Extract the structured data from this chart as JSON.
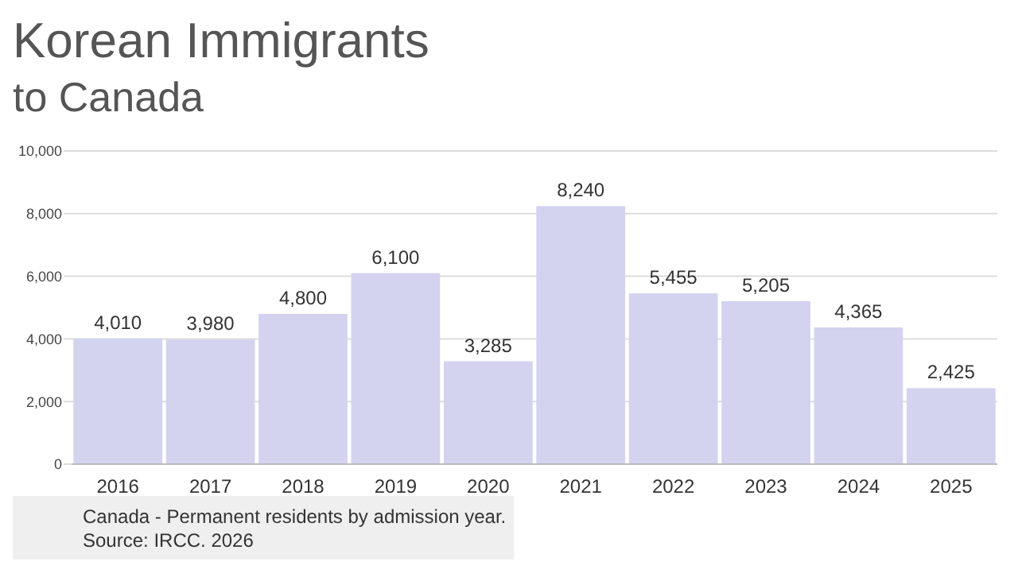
{
  "chart_data": {
    "type": "bar",
    "title": "Korean Immigrants",
    "subtitle": "to Canada",
    "categories": [
      "2016",
      "2017",
      "2018",
      "2019",
      "2020",
      "2021",
      "2022",
      "2023",
      "2024",
      "2025"
    ],
    "values": [
      4010,
      3980,
      4800,
      6100,
      3285,
      8240,
      5455,
      5205,
      4365,
      2425
    ],
    "value_labels": [
      "4,010",
      "3,980",
      "4,800",
      "6,100",
      "3,285",
      "8,240",
      "5,455",
      "5,205",
      "4,365",
      "2,425"
    ],
    "color": "#d3d3f0",
    "ylim": [
      0,
      10000
    ],
    "yticks": [
      0,
      {
        "value": 2000,
        "label": "2,000"
      },
      {
        "value": 4000,
        "label": "4,000"
      },
      {
        "value": 6000,
        "label": "6,000"
      },
      {
        "value": 8000,
        "label": "8,000"
      },
      {
        "value": 10000,
        "label": "10,000"
      }
    ],
    "grid": "y",
    "annotations": [
      "Canada - Permanent residents by admission year.",
      "Source: IRCC. 2026"
    ]
  }
}
